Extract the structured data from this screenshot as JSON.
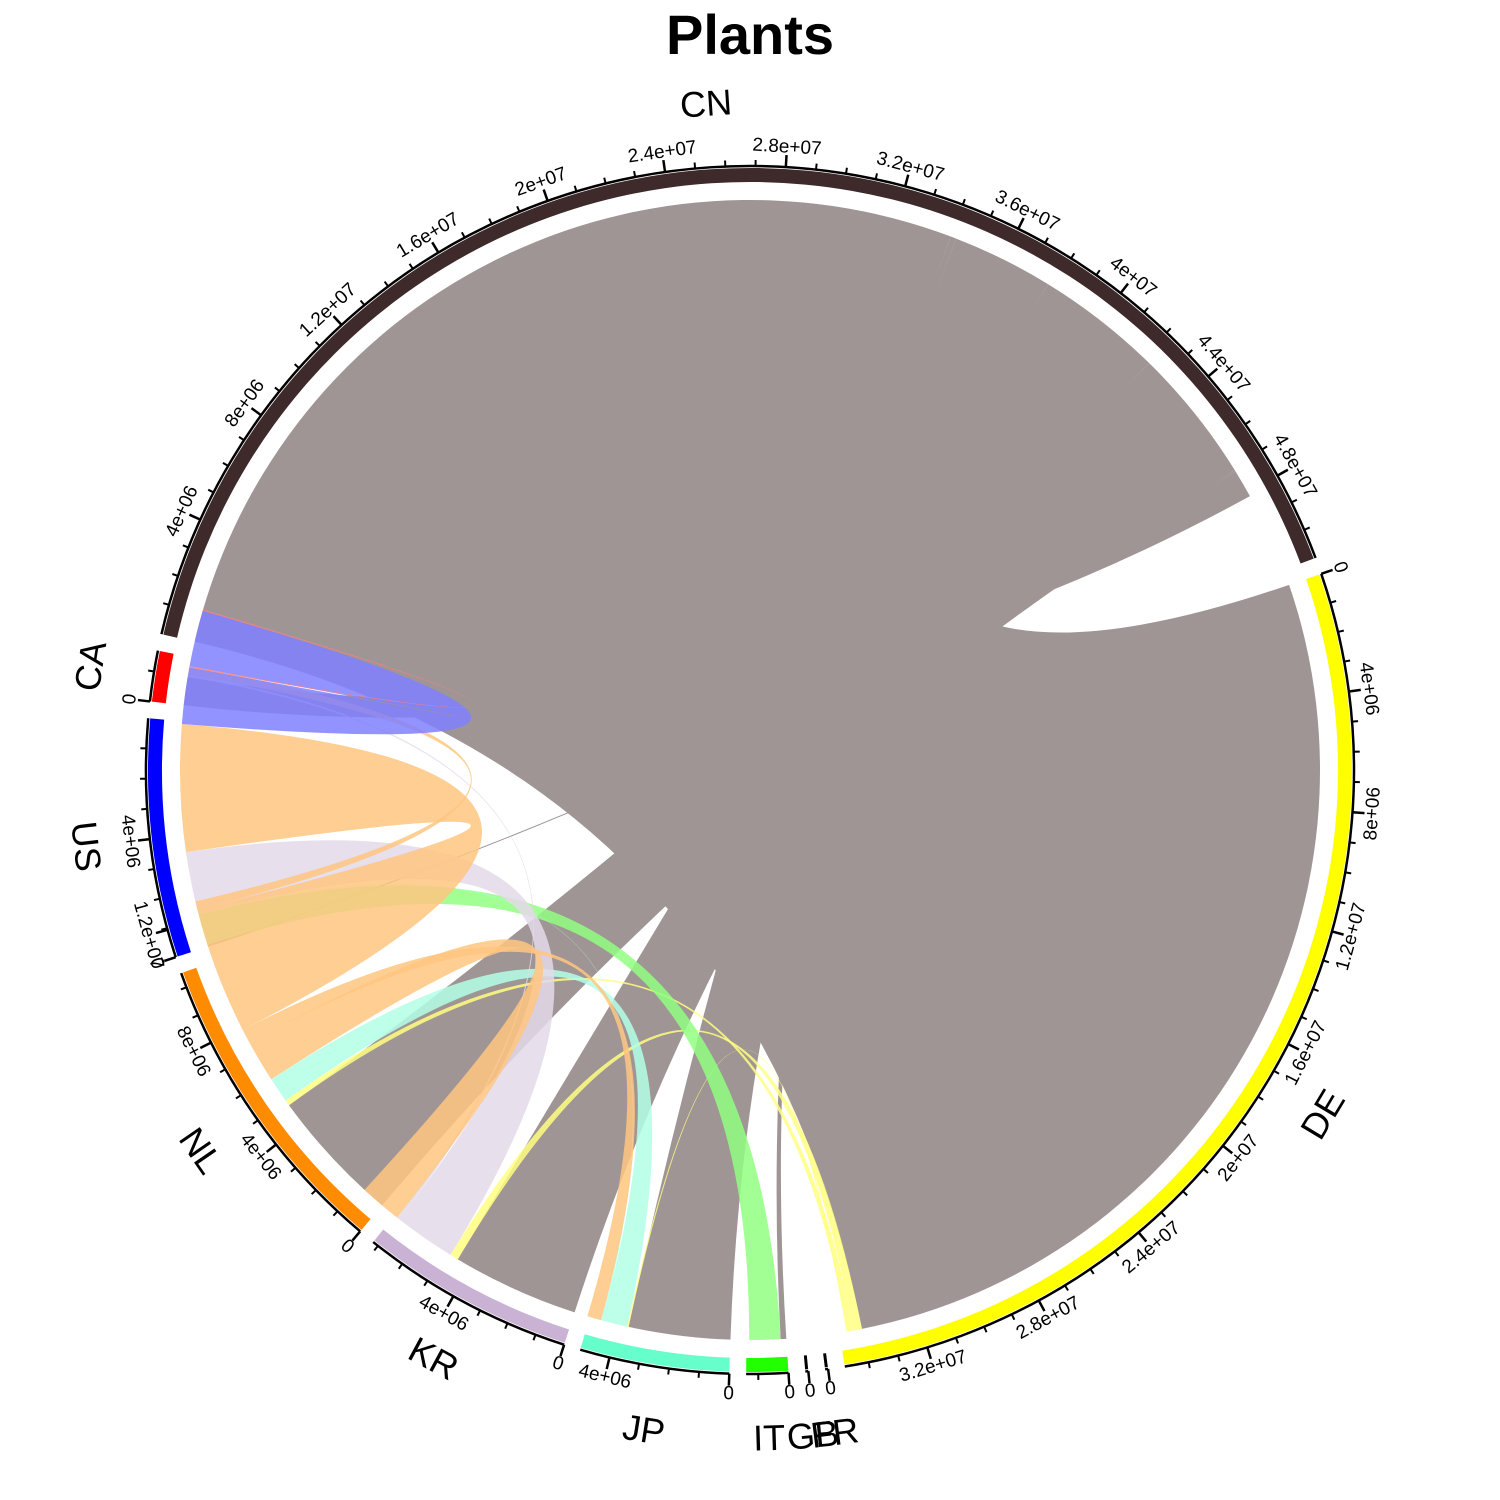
{
  "chart_data": {
    "type": "chord",
    "title": "Plants",
    "sectors": [
      {
        "name": "CN",
        "color": "#3E2A2A",
        "total": 51000000,
        "major_ticks": [
          4000000,
          8000000,
          12000000,
          16000000,
          20000000,
          24000000,
          28000000,
          32000000,
          36000000,
          40000000,
          44000000,
          48000000
        ]
      },
      {
        "name": "DE",
        "color": "#FFFF00",
        "total": 34800000,
        "major_ticks": [
          0,
          4000000,
          8000000,
          12000000,
          16000000,
          20000000,
          24000000,
          28000000,
          32000000
        ]
      },
      {
        "name": "FR",
        "color": "#000000",
        "total": 100000,
        "major_ticks": [
          0
        ]
      },
      {
        "name": "GB",
        "color": "#000000",
        "total": 100000,
        "major_ticks": [
          0
        ]
      },
      {
        "name": "IT",
        "color": "#22FF00",
        "total": 1400000,
        "major_ticks": [
          0
        ]
      },
      {
        "name": "JP",
        "color": "#66FFCC",
        "total": 5000000,
        "major_ticks": [
          0,
          4000000
        ]
      },
      {
        "name": "KR",
        "color": "#C9B2D3",
        "total": 7200000,
        "major_ticks": [
          0,
          4000000
        ]
      },
      {
        "name": "NL",
        "color": "#FF8C00",
        "total": 10500000,
        "major_ticks": [
          0,
          4000000,
          8000000,
          12000000
        ]
      },
      {
        "name": "US",
        "color": "#0000FF",
        "total": 8000000,
        "major_ticks": [
          0,
          4000000
        ]
      },
      {
        "name": "CA",
        "color": "#FF0000",
        "total": 1700000,
        "major_ticks": [
          0
        ]
      }
    ],
    "flows": [
      {
        "from": "CN",
        "to": "DE",
        "value": 34000000
      },
      {
        "from": "CN",
        "to": "IT",
        "value": 200000
      },
      {
        "from": "CN",
        "to": "JP",
        "value": 3600000
      },
      {
        "from": "CN",
        "to": "KR",
        "value": 4500000
      },
      {
        "from": "CN",
        "to": "NL",
        "value": 4800000
      },
      {
        "from": "CN",
        "to": "US",
        "value": 60000
      },
      {
        "from": "CN",
        "to": "CA",
        "value": 1000000
      },
      {
        "from": "DE",
        "to": "KR",
        "value": 300000
      },
      {
        "from": "DE",
        "to": "NL",
        "value": 200000
      },
      {
        "from": "DE",
        "to": "JP",
        "value": 50000
      },
      {
        "from": "IT",
        "to": "US",
        "value": 1100000
      },
      {
        "from": "JP",
        "to": "NL",
        "value": 900000
      },
      {
        "from": "JP",
        "to": "US",
        "value": 40000
      },
      {
        "from": "KR",
        "to": "US",
        "value": 2200000
      },
      {
        "from": "KR",
        "to": "CA",
        "value": 80000
      },
      {
        "from": "NL",
        "to": "KR",
        "value": 1500000
      },
      {
        "from": "NL",
        "to": "JP",
        "value": 500000
      },
      {
        "from": "NL",
        "to": "US",
        "value": 4500000
      },
      {
        "from": "NL",
        "to": "CA",
        "value": 300000
      },
      {
        "from": "US",
        "to": "CA",
        "value": 2000000
      },
      {
        "from": "CA",
        "to": "US",
        "value": 40000
      }
    ]
  }
}
